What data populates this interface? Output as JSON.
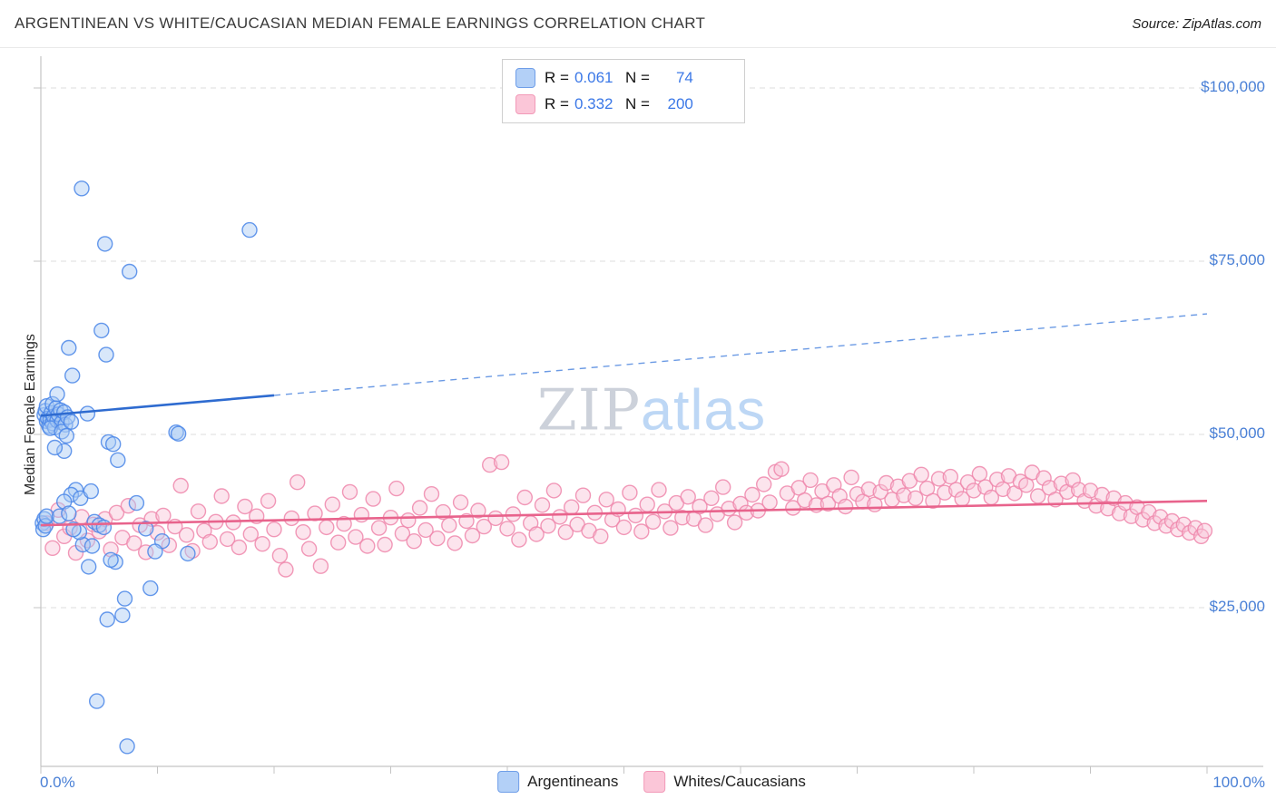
{
  "header": {
    "title": "ARGENTINEAN VS WHITE/CAUCASIAN MEDIAN FEMALE EARNINGS CORRELATION CHART",
    "source_prefix": "Source:",
    "source": "ZipAtlas.com"
  },
  "stats_legend": {
    "rows": [
      {
        "r_label": "R =",
        "r_value": "0.061",
        "n_label": "N =",
        "n_value": "74"
      },
      {
        "r_label": "R =",
        "r_value": "0.332",
        "n_label": "N =",
        "n_value": "200"
      }
    ]
  },
  "axes": {
    "y_label": "Median Female Earnings",
    "x_min_label": "0.0%",
    "x_max_label": "100.0%",
    "x_minor_tick_step": 10,
    "y_ticks": [
      {
        "value": 100000,
        "label": "$100,000"
      },
      {
        "value": 75000,
        "label": "$75,000"
      },
      {
        "value": 50000,
        "label": "$50,000"
      },
      {
        "value": 25000,
        "label": "$25,000"
      }
    ]
  },
  "watermark": {
    "part1": "ZIP",
    "part2": "atlas"
  },
  "bottom_legend": {
    "items": [
      {
        "label": "Argentineans"
      },
      {
        "label": "Whites/Caucasians"
      }
    ]
  },
  "chart_data": {
    "type": "scatter",
    "title": "Argentinean vs White/Caucasian Median Female Earnings",
    "x_axis": {
      "min": 0,
      "max": 100,
      "unit": "%",
      "tick_step": 10
    },
    "y_axis": {
      "min": 0,
      "max": 105000,
      "unit": "USD",
      "gridlines": [
        25000,
        50000,
        75000,
        100000
      ]
    },
    "grid": "horizontal-dashed",
    "legend_position": "bottom-center",
    "series": [
      {
        "id": "argentineans",
        "name": "Argentineans",
        "r": 0.061,
        "n": 74,
        "stroke": "#4a86e8",
        "fill": "#a9c9f5",
        "points": [
          [
            0.3,
            52800
          ],
          [
            0.4,
            53400
          ],
          [
            0.5,
            51900
          ],
          [
            0.5,
            54100
          ],
          [
            0.6,
            52300
          ],
          [
            0.7,
            51200
          ],
          [
            0.8,
            52100
          ],
          [
            0.9,
            53100
          ],
          [
            1.0,
            51600
          ],
          [
            1.0,
            54400
          ],
          [
            1.1,
            52600
          ],
          [
            1.2,
            51000
          ],
          [
            1.3,
            53800
          ],
          [
            1.4,
            52000
          ],
          [
            1.5,
            52900
          ],
          [
            1.7,
            53500
          ],
          [
            1.8,
            51700
          ],
          [
            2.0,
            53200
          ],
          [
            2.1,
            51400
          ],
          [
            2.3,
            52500
          ],
          [
            0.15,
            37200
          ],
          [
            0.2,
            36300
          ],
          [
            0.3,
            37800
          ],
          [
            0.4,
            36800
          ],
          [
            0.5,
            38200
          ],
          [
            3.5,
            85500
          ],
          [
            17.9,
            79500
          ],
          [
            5.5,
            77500
          ],
          [
            7.6,
            73500
          ],
          [
            5.2,
            65000
          ],
          [
            2.4,
            62500
          ],
          [
            5.6,
            61500
          ],
          [
            2.7,
            58500
          ],
          [
            1.4,
            55800
          ],
          [
            0.8,
            50900
          ],
          [
            1.8,
            50400
          ],
          [
            2.6,
            51800
          ],
          [
            4.0,
            53000
          ],
          [
            2.2,
            49800
          ],
          [
            11.6,
            50300
          ],
          [
            11.8,
            50100
          ],
          [
            5.8,
            48900
          ],
          [
            6.2,
            48600
          ],
          [
            2.0,
            47600
          ],
          [
            6.6,
            46300
          ],
          [
            1.2,
            48100
          ],
          [
            3.0,
            42000
          ],
          [
            2.6,
            41300
          ],
          [
            3.4,
            40800
          ],
          [
            2.0,
            40300
          ],
          [
            4.3,
            41800
          ],
          [
            1.6,
            38200
          ],
          [
            2.4,
            38600
          ],
          [
            4.6,
            37400
          ],
          [
            5.0,
            36900
          ],
          [
            5.4,
            36600
          ],
          [
            3.6,
            34100
          ],
          [
            4.4,
            33900
          ],
          [
            6.4,
            31600
          ],
          [
            6.0,
            31900
          ],
          [
            4.1,
            30900
          ],
          [
            8.2,
            40100
          ],
          [
            9.0,
            36400
          ],
          [
            10.4,
            34600
          ],
          [
            9.8,
            33100
          ],
          [
            3.3,
            35900
          ],
          [
            2.8,
            36300
          ],
          [
            9.4,
            27800
          ],
          [
            7.2,
            26300
          ],
          [
            5.7,
            23300
          ],
          [
            7.0,
            23900
          ],
          [
            4.8,
            11500
          ],
          [
            7.4,
            5000
          ],
          [
            12.6,
            32800
          ]
        ]
      },
      {
        "id": "whites",
        "name": "Whites/Caucasians",
        "r": 0.332,
        "n": 200,
        "stroke": "#ef87ab",
        "fill": "#f9c4d7",
        "points": [
          [
            0.5,
            37200
          ],
          [
            1,
            33600
          ],
          [
            1.5,
            39100
          ],
          [
            2,
            35300
          ],
          [
            2.5,
            36500
          ],
          [
            3,
            32900
          ],
          [
            3.5,
            38100
          ],
          [
            4,
            34700
          ],
          [
            4.5,
            37000
          ],
          [
            5,
            36000
          ],
          [
            5.5,
            37800
          ],
          [
            6,
            33400
          ],
          [
            6.5,
            38700
          ],
          [
            7,
            35100
          ],
          [
            7.5,
            39700
          ],
          [
            8,
            34300
          ],
          [
            8.5,
            36900
          ],
          [
            9,
            33000
          ],
          [
            9.5,
            37800
          ],
          [
            10,
            35800
          ],
          [
            10.5,
            38300
          ],
          [
            11,
            34000
          ],
          [
            11.5,
            36700
          ],
          [
            12,
            42600
          ],
          [
            12.5,
            35500
          ],
          [
            13,
            33200
          ],
          [
            13.5,
            38900
          ],
          [
            14,
            36100
          ],
          [
            14.5,
            34500
          ],
          [
            15,
            37400
          ],
          [
            15.5,
            41100
          ],
          [
            16,
            34900
          ],
          [
            16.5,
            37300
          ],
          [
            17,
            33700
          ],
          [
            17.5,
            39600
          ],
          [
            18,
            35600
          ],
          [
            18.5,
            38200
          ],
          [
            19,
            34200
          ],
          [
            19.5,
            40400
          ],
          [
            20,
            36300
          ],
          [
            20.5,
            32500
          ],
          [
            21,
            30500
          ],
          [
            21.5,
            37900
          ],
          [
            22,
            43100
          ],
          [
            22.5,
            35900
          ],
          [
            23,
            33500
          ],
          [
            23.5,
            38600
          ],
          [
            24,
            31000
          ],
          [
            24.5,
            36600
          ],
          [
            25,
            39900
          ],
          [
            25.5,
            34400
          ],
          [
            26,
            37100
          ],
          [
            26.5,
            41700
          ],
          [
            27,
            35200
          ],
          [
            27.5,
            38400
          ],
          [
            28,
            33900
          ],
          [
            28.5,
            40700
          ],
          [
            29,
            36500
          ],
          [
            29.5,
            34100
          ],
          [
            30,
            38000
          ],
          [
            30.5,
            42200
          ],
          [
            31,
            35700
          ],
          [
            31.5,
            37600
          ],
          [
            32,
            34600
          ],
          [
            32.5,
            39400
          ],
          [
            33,
            36200
          ],
          [
            33.5,
            41400
          ],
          [
            34,
            35000
          ],
          [
            34.5,
            38800
          ],
          [
            35,
            36900
          ],
          [
            35.5,
            34300
          ],
          [
            36,
            40200
          ],
          [
            36.5,
            37500
          ],
          [
            37,
            35400
          ],
          [
            37.5,
            39000
          ],
          [
            38,
            36700
          ],
          [
            38.5,
            45600
          ],
          [
            39,
            37900
          ],
          [
            39.5,
            46000
          ],
          [
            40,
            36400
          ],
          [
            40.5,
            38500
          ],
          [
            41,
            34800
          ],
          [
            41.5,
            40900
          ],
          [
            42,
            37200
          ],
          [
            42.5,
            35600
          ],
          [
            43,
            39800
          ],
          [
            43.5,
            36800
          ],
          [
            44,
            41900
          ],
          [
            44.5,
            38100
          ],
          [
            45,
            35900
          ],
          [
            45.5,
            39500
          ],
          [
            46,
            37000
          ],
          [
            46.5,
            41200
          ],
          [
            47,
            36100
          ],
          [
            47.5,
            38700
          ],
          [
            48,
            35300
          ],
          [
            48.5,
            40600
          ],
          [
            49,
            37700
          ],
          [
            49.5,
            39200
          ],
          [
            50,
            36600
          ],
          [
            50.5,
            41600
          ],
          [
            51,
            38300
          ],
          [
            51.5,
            36000
          ],
          [
            52,
            39900
          ],
          [
            52.5,
            37400
          ],
          [
            53,
            42000
          ],
          [
            53.5,
            38900
          ],
          [
            54,
            36500
          ],
          [
            54.5,
            40100
          ],
          [
            55,
            38000
          ],
          [
            55.5,
            41000
          ],
          [
            56,
            37800
          ],
          [
            56.5,
            39600
          ],
          [
            57,
            36900
          ],
          [
            57.5,
            40800
          ],
          [
            58,
            38500
          ],
          [
            58.5,
            42400
          ],
          [
            59,
            39300
          ],
          [
            59.5,
            37300
          ],
          [
            60,
            40000
          ],
          [
            60.5,
            38700
          ],
          [
            61,
            41300
          ],
          [
            61.5,
            39000
          ],
          [
            62,
            42800
          ],
          [
            62.5,
            40200
          ],
          [
            63,
            44600
          ],
          [
            63.5,
            45000
          ],
          [
            64,
            41500
          ],
          [
            64.5,
            39400
          ],
          [
            65,
            42300
          ],
          [
            65.5,
            40500
          ],
          [
            66,
            43400
          ],
          [
            66.5,
            39800
          ],
          [
            67,
            41800
          ],
          [
            67.5,
            40000
          ],
          [
            68,
            42700
          ],
          [
            68.5,
            41100
          ],
          [
            69,
            39600
          ],
          [
            69.5,
            43800
          ],
          [
            70,
            41400
          ],
          [
            70.5,
            40300
          ],
          [
            71,
            42100
          ],
          [
            71.5,
            39900
          ],
          [
            72,
            41700
          ],
          [
            72.5,
            43000
          ],
          [
            73,
            40600
          ],
          [
            73.5,
            42500
          ],
          [
            74,
            41200
          ],
          [
            74.5,
            43300
          ],
          [
            75,
            40800
          ],
          [
            75.5,
            44200
          ],
          [
            76,
            42200
          ],
          [
            76.5,
            40400
          ],
          [
            77,
            43600
          ],
          [
            77.5,
            41600
          ],
          [
            78,
            43900
          ],
          [
            78.5,
            42000
          ],
          [
            79,
            40700
          ],
          [
            79.5,
            43100
          ],
          [
            80,
            41900
          ],
          [
            80.5,
            44300
          ],
          [
            81,
            42400
          ],
          [
            81.5,
            40900
          ],
          [
            82,
            43500
          ],
          [
            82.5,
            42100
          ],
          [
            83,
            44000
          ],
          [
            83.5,
            41500
          ],
          [
            84,
            43200
          ],
          [
            84.5,
            42700
          ],
          [
            85,
            44500
          ],
          [
            85.5,
            41100
          ],
          [
            86,
            43700
          ],
          [
            86.5,
            42300
          ],
          [
            87,
            40600
          ],
          [
            87.5,
            42900
          ],
          [
            88,
            41700
          ],
          [
            88.5,
            43400
          ],
          [
            89,
            42000
          ],
          [
            89.5,
            40400
          ],
          [
            90,
            41900
          ],
          [
            90.5,
            39700
          ],
          [
            91,
            41300
          ],
          [
            91.5,
            39300
          ],
          [
            92,
            40800
          ],
          [
            92.5,
            38600
          ],
          [
            93,
            40100
          ],
          [
            93.5,
            38200
          ],
          [
            94,
            39500
          ],
          [
            94.5,
            37700
          ],
          [
            95,
            38800
          ],
          [
            95.5,
            37200
          ],
          [
            96,
            38100
          ],
          [
            96.5,
            36800
          ],
          [
            97,
            37500
          ],
          [
            97.5,
            36300
          ],
          [
            98,
            37000
          ],
          [
            98.5,
            35800
          ],
          [
            99,
            36500
          ],
          [
            99.5,
            35300
          ],
          [
            99.8,
            36100
          ]
        ]
      }
    ],
    "trends": [
      {
        "id": "argentineans",
        "start": [
          0,
          52700
        ],
        "end": [
          100,
          67400
        ],
        "solid_until_x": 20,
        "color": "#2e6bd0",
        "dashed_color": "#6b9ae4"
      },
      {
        "id": "whites",
        "start": [
          0,
          36900
        ],
        "end": [
          100,
          40400
        ],
        "solid_until_x": 100,
        "color": "#e8638c"
      }
    ]
  }
}
